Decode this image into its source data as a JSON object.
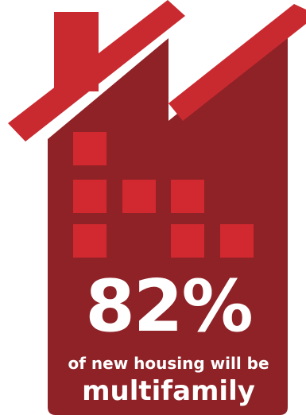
{
  "infographic": {
    "stat": "82%",
    "caption": "of new housing will be",
    "headline": "multifamily"
  },
  "colors": {
    "house_body": "#8f2227",
    "roof_stripe": "#c92a2f",
    "window_square": "#d1292f",
    "text": "#ffffff",
    "background": "#ffffff"
  },
  "icons": {
    "house": "house-silhouette-icon",
    "chimney": "chimney-icon",
    "windows": "window-grid-icon"
  }
}
